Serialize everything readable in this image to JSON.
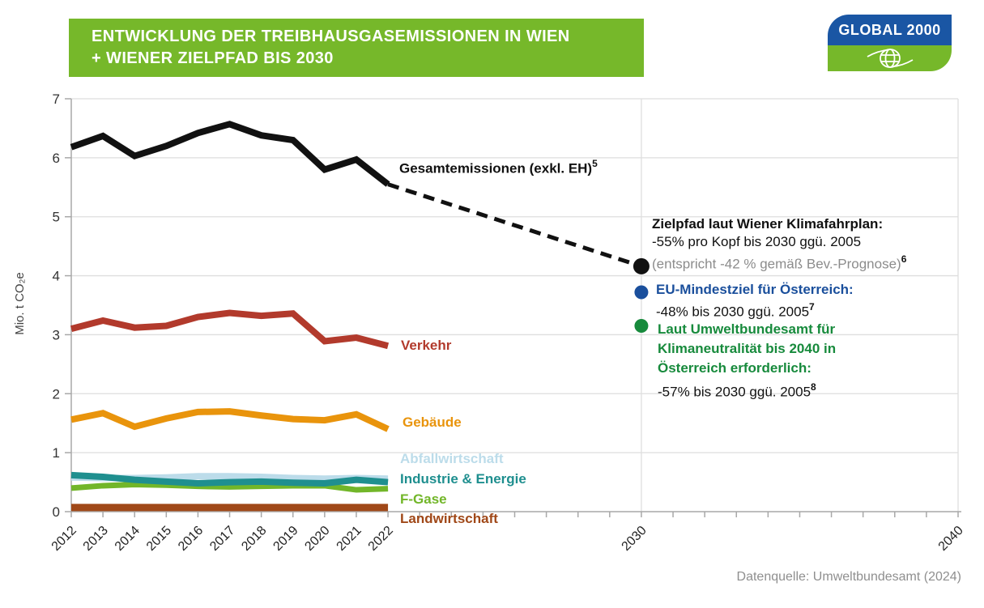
{
  "header": {
    "title_line1": "ENTWICKLUNG DER TREIBHAUSGASEMISSIONEN IN WIEN",
    "title_line2": "+ WIENER ZIELPFAD BIS 2030",
    "banner_color": "#76b82a",
    "logo": {
      "text": "GLOBAL 2000",
      "blue": "#1a56a4",
      "green": "#76b82a",
      "icon": "globe-icon"
    }
  },
  "footer": {
    "source": "Datenquelle: Umweltbundesamt (2024)"
  },
  "chart_data": {
    "type": "line",
    "title": "Entwicklung der Treibhausgasemissionen in Wien + Wiener Zielpfad bis 2030",
    "ylabel": "Mio. t CO₂e",
    "ylim": [
      0,
      7
    ],
    "xlim": [
      2012,
      2040
    ],
    "y_ticks": [
      0,
      1,
      2,
      3,
      4,
      5,
      6,
      7
    ],
    "x_tick_labels": [
      "2012",
      "2013",
      "2014",
      "2015",
      "2016",
      "2017",
      "2018",
      "2019",
      "2020",
      "2021",
      "2022",
      "2030",
      "2040"
    ],
    "grid": {
      "horizontal": true,
      "vertical_at": [
        2030,
        2040
      ]
    },
    "years": [
      2012,
      2013,
      2014,
      2015,
      2016,
      2017,
      2018,
      2019,
      2020,
      2021,
      2022
    ],
    "series": [
      {
        "name": "gesamtemissionen",
        "label": "Gesamtemissionen (exkl. EH)",
        "footnote": "5",
        "color": "#111111",
        "width": 8,
        "values": [
          6.18,
          6.37,
          6.03,
          6.2,
          6.42,
          6.57,
          6.38,
          6.3,
          5.8,
          5.97,
          5.55
        ]
      },
      {
        "name": "verkehr",
        "label": "Verkehr",
        "color": "#b23a2c",
        "width": 8,
        "values": [
          3.1,
          3.24,
          3.12,
          3.15,
          3.3,
          3.37,
          3.32,
          3.36,
          2.89,
          2.95,
          2.81
        ]
      },
      {
        "name": "gebaeude",
        "label": "Gebäude",
        "color": "#e9940c",
        "width": 8,
        "values": [
          1.56,
          1.67,
          1.44,
          1.58,
          1.69,
          1.7,
          1.63,
          1.57,
          1.55,
          1.65,
          1.4
        ]
      },
      {
        "name": "f_gase",
        "label": "F-Gase",
        "color": "#72b629",
        "width": 7,
        "values": [
          0.4,
          0.44,
          0.46,
          0.45,
          0.43,
          0.42,
          0.43,
          0.44,
          0.44,
          0.37,
          0.39
        ]
      },
      {
        "name": "abfallwirtschaft",
        "label": "Abfallwirtschaft",
        "color": "#bcdcea",
        "width": 8,
        "values": [
          0.58,
          0.57,
          0.57,
          0.58,
          0.6,
          0.6,
          0.59,
          0.57,
          0.56,
          0.57,
          0.56
        ]
      },
      {
        "name": "industrie_energie",
        "label": "Industrie & Energie",
        "color": "#1f8f8f",
        "width": 8,
        "values": [
          0.62,
          0.59,
          0.54,
          0.51,
          0.48,
          0.5,
          0.51,
          0.49,
          0.48,
          0.54,
          0.5
        ]
      },
      {
        "name": "landwirtschaft",
        "label": "Landwirtschaft",
        "color": "#a04818",
        "width": 9,
        "values": [
          0.07,
          0.07,
          0.07,
          0.07,
          0.07,
          0.07,
          0.07,
          0.07,
          0.07,
          0.07,
          0.07
        ]
      }
    ],
    "projection": {
      "name": "zielpfad-dashed",
      "x": [
        2022,
        2030
      ],
      "y": [
        5.55,
        4.16
      ],
      "style": "dashed",
      "color": "#111111",
      "width": 5
    },
    "points_2030": [
      {
        "name": "zielpfad-2030-point",
        "x": 2030,
        "value": 4.16,
        "color": "#111111",
        "r": 10
      },
      {
        "name": "eu-mindestziel-point",
        "x": 2030,
        "value": 3.72,
        "color": "#1a4f9c",
        "r": 8.5
      },
      {
        "name": "umweltbundesamt-point",
        "x": 2030,
        "value": 3.15,
        "color": "#178a3c",
        "r": 8.5
      }
    ]
  },
  "annotations": {
    "zielpfad": {
      "title": "Zielpfad laut Wiener Klimafahrplan:",
      "detail": "-55% pro Kopf bis 2030 ggü. 2005",
      "note": "(entspricht -42 % gemäß Bev.-Prognose)",
      "footnote": "6",
      "color": "#111111"
    },
    "eu": {
      "title": "EU-Mindestziel für Österreich:",
      "detail": "-48% bis 2030 ggü. 2005",
      "footnote": "7",
      "color": "#1a4f9c"
    },
    "umweltbundesamt": {
      "title_line1": "Laut Umweltbundesamt für",
      "title_line2": "Klimaneutralität bis 2040 in",
      "title_line3": "Österreich erforderlich:",
      "detail": "-57% bis 2030 ggü. 2005",
      "footnote": "8",
      "color": "#178a3c"
    }
  }
}
